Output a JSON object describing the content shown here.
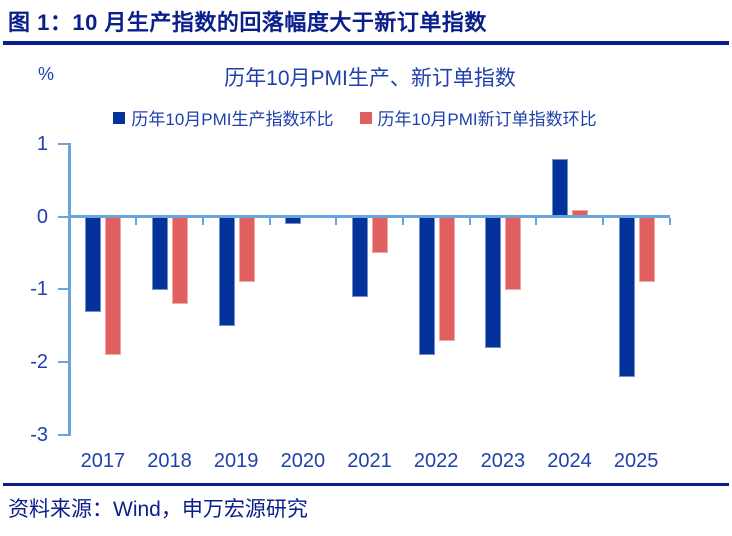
{
  "figure": {
    "title": "图 1：10 月生产指数的回落幅度大于新订单指数",
    "source": "资料来源：Wind，申万宏源研究"
  },
  "chart_data": {
    "type": "bar",
    "title": "历年10月PMI生产、新订单指数",
    "unit_label": "%",
    "categories": [
      "2017",
      "2018",
      "2019",
      "2020",
      "2021",
      "2022",
      "2023",
      "2024",
      "2025"
    ],
    "series": [
      {
        "name": "历年10月PMI生产指数环比",
        "color": "#03329B",
        "values": [
          -1.3,
          -1.0,
          -1.5,
          -0.1,
          -1.1,
          -1.9,
          -1.8,
          0.8,
          -2.2
        ]
      },
      {
        "name": "历年10月PMI新订单指数环比",
        "color": "#E25F60",
        "values": [
          -1.9,
          -1.2,
          -0.9,
          0.0,
          -0.5,
          -1.7,
          -1.0,
          0.1,
          -0.9
        ]
      }
    ],
    "ylim": [
      -3,
      1
    ],
    "yticks": [
      1,
      0,
      -1,
      -2,
      -3
    ],
    "legend_position": "top",
    "grid": false
  },
  "colors": {
    "navy": "#0A1F8C",
    "royal": "#2041AC",
    "axis_blue": "#68A5DC"
  }
}
